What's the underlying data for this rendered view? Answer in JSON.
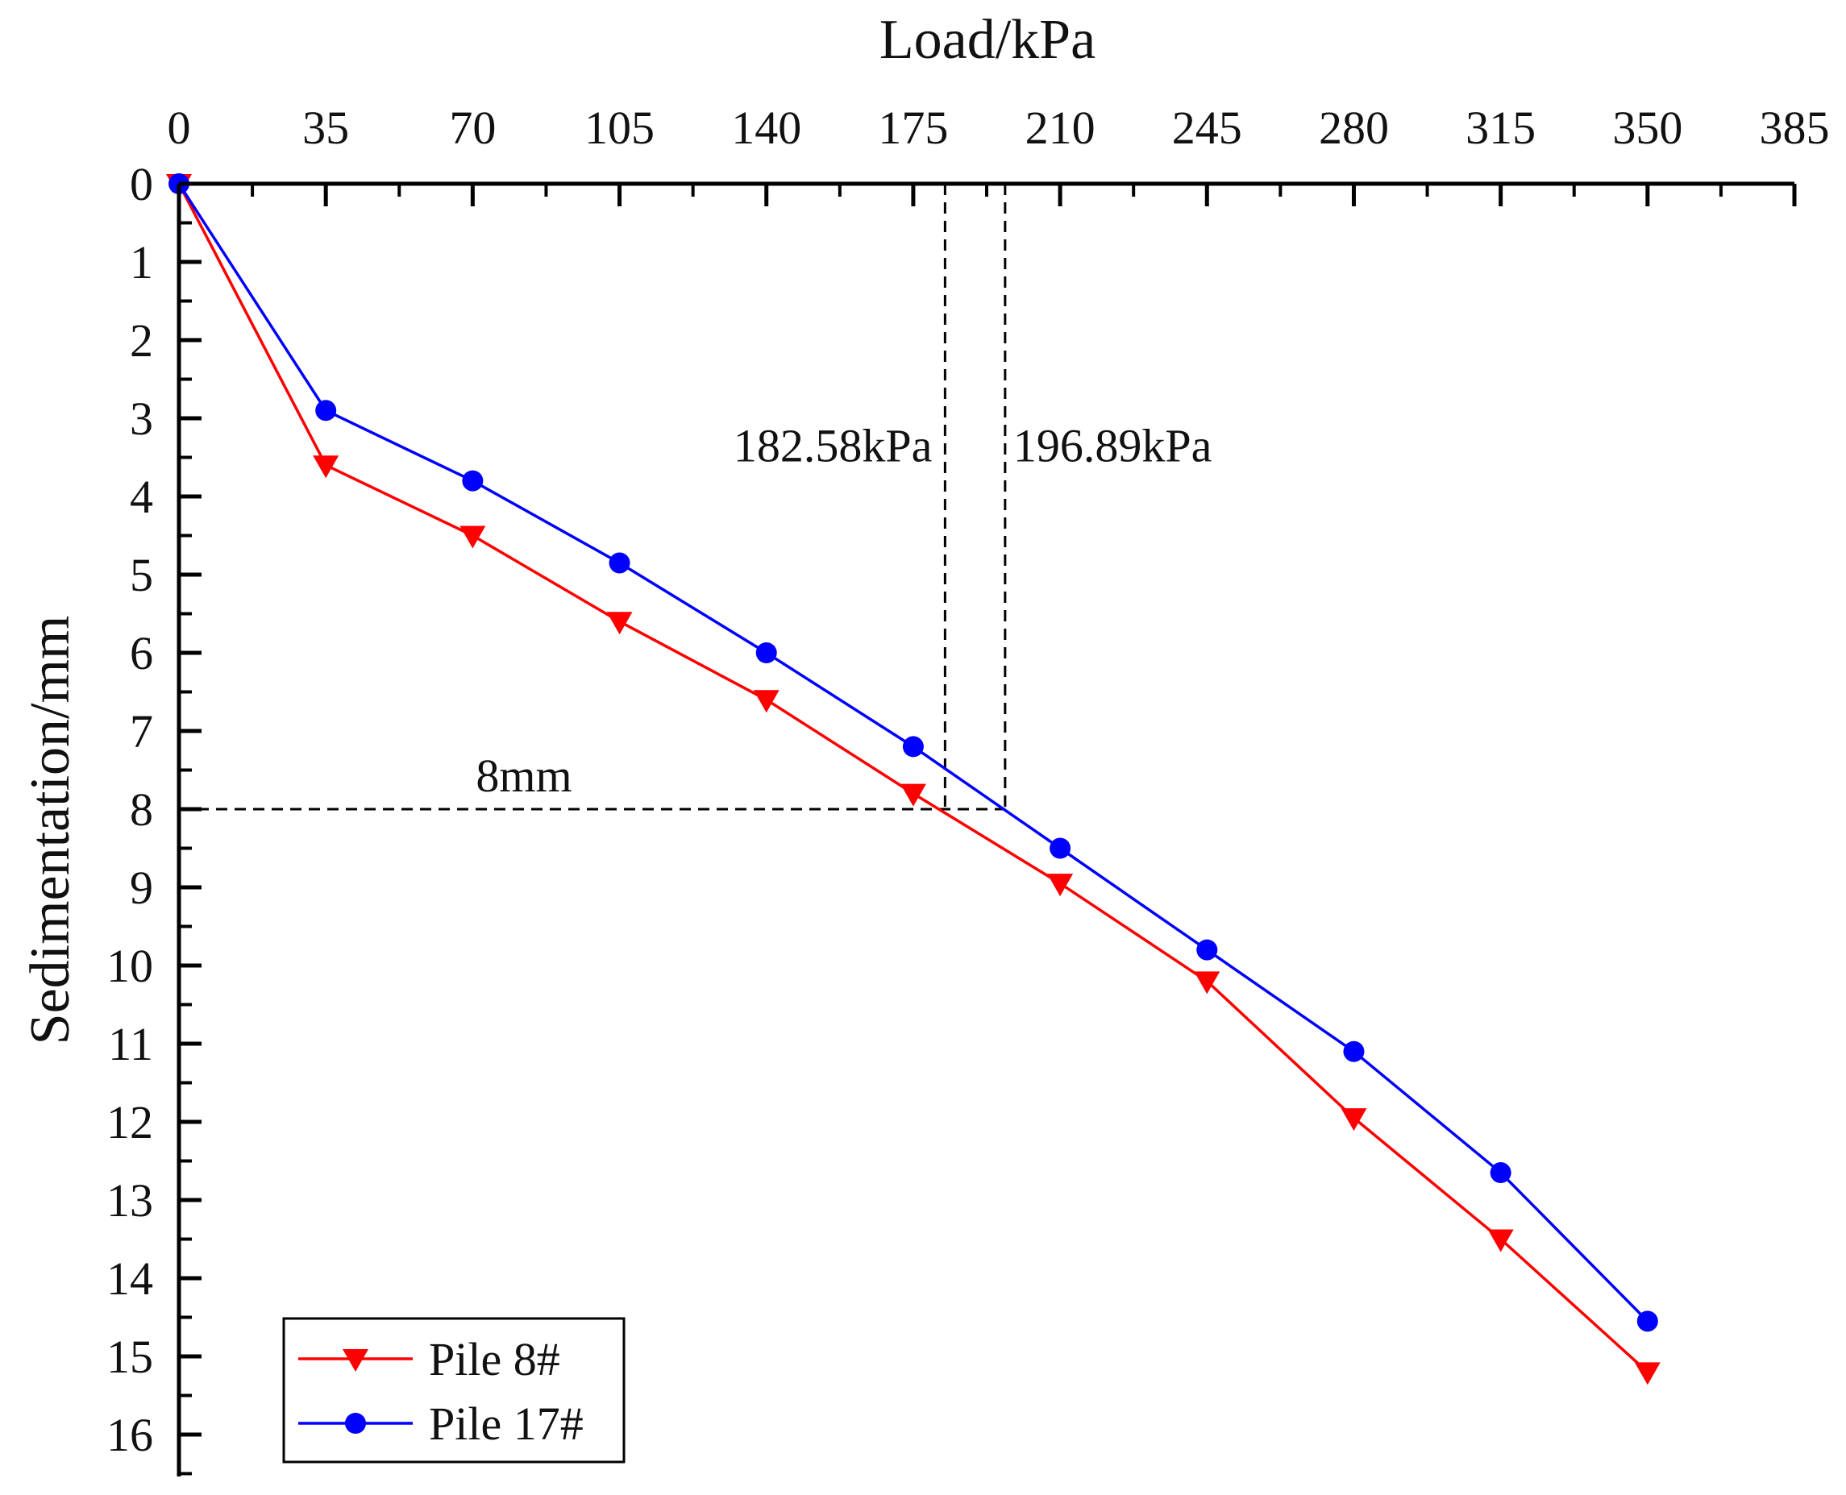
{
  "chart_data": {
    "type": "line",
    "title": "",
    "xlabel": "Load/kPa",
    "ylabel": "Sedimentation/mm",
    "x_axis_position": "top",
    "y_axis_inverted": true,
    "xlim": [
      0,
      385
    ],
    "ylim": [
      0,
      16
    ],
    "x_ticks": [
      0,
      35,
      70,
      105,
      140,
      175,
      210,
      245,
      280,
      315,
      350,
      385
    ],
    "x_tick_labels": [
      "0",
      "35",
      "70",
      "105",
      "140",
      "175",
      "210",
      "245",
      "280",
      "315",
      "350",
      "385"
    ],
    "y_ticks": [
      0,
      1,
      2,
      3,
      4,
      5,
      6,
      7,
      8,
      9,
      10,
      11,
      12,
      13,
      14,
      15,
      16
    ],
    "y_tick_labels": [
      "0",
      "1",
      "2",
      "3",
      "4",
      "5",
      "6",
      "7",
      "8",
      "9",
      "10",
      "11",
      "12",
      "13",
      "14",
      "15",
      "16"
    ],
    "grid": false,
    "x": [
      0,
      35,
      70,
      105,
      140,
      175,
      210,
      245,
      280,
      315,
      350
    ],
    "series": [
      {
        "name": "Pile 8#",
        "color": "#ff0000",
        "marker": "triangle-down",
        "values": [
          0,
          3.6,
          4.5,
          5.6,
          6.6,
          7.8,
          8.95,
          10.2,
          11.95,
          13.5,
          15.2
        ]
      },
      {
        "name": "Pile 17#",
        "color": "#0000ff",
        "marker": "circle",
        "values": [
          0,
          2.9,
          3.8,
          4.85,
          6.0,
          7.2,
          8.5,
          9.8,
          11.1,
          12.65,
          14.55
        ]
      }
    ],
    "reference_lines": [
      {
        "orientation": "vertical",
        "x": 182.58,
        "y_from": 0,
        "y_to": 8,
        "label": "182.58kPa",
        "label_side": "left"
      },
      {
        "orientation": "vertical",
        "x": 196.89,
        "y_from": 0,
        "y_to": 8,
        "label": "196.89kPa",
        "label_side": "right"
      },
      {
        "orientation": "horizontal",
        "y": 8,
        "x_from": 0,
        "x_to": 196.89,
        "label": "8mm"
      }
    ],
    "legend_placement": "bottom-left"
  }
}
